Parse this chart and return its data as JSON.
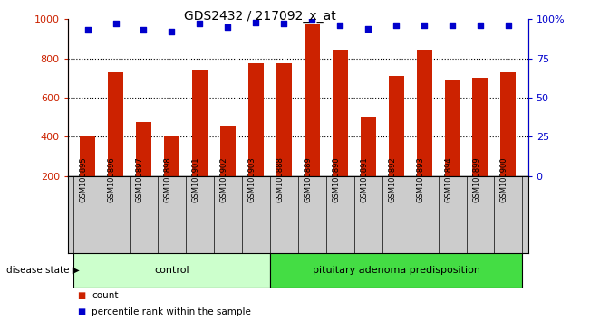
{
  "title": "GDS2432 / 217092_x_at",
  "samples": [
    "GSM100895",
    "GSM100896",
    "GSM100897",
    "GSM100898",
    "GSM100901",
    "GSM100902",
    "GSM100903",
    "GSM100888",
    "GSM100889",
    "GSM100890",
    "GSM100891",
    "GSM100892",
    "GSM100893",
    "GSM100894",
    "GSM100899",
    "GSM100900"
  ],
  "counts": [
    400,
    730,
    475,
    405,
    745,
    455,
    775,
    775,
    980,
    845,
    505,
    710,
    845,
    690,
    700,
    730
  ],
  "percentiles": [
    93,
    97,
    93,
    92,
    97,
    95,
    98,
    97,
    100,
    96,
    94,
    96,
    96,
    96,
    96,
    96
  ],
  "control_count": 7,
  "disease_state_label": "disease state",
  "control_label": "control",
  "disease_label": "pituitary adenoma predisposition",
  "legend_count": "count",
  "legend_pct": "percentile rank within the sample",
  "ylim_left": [
    200,
    1000
  ],
  "ylim_right": [
    0,
    100
  ],
  "yticks_left": [
    200,
    400,
    600,
    800,
    1000
  ],
  "yticks_right": [
    0,
    25,
    50,
    75,
    100
  ],
  "bar_color": "#cc2200",
  "dot_color": "#0000cc",
  "control_bg": "#ccffcc",
  "disease_bg": "#44dd44",
  "sample_box_bg": "#cccccc",
  "grid_color": "#000000",
  "bg_color": "#ffffff",
  "axis_label_color_left": "#cc2200",
  "axis_label_color_right": "#0000cc"
}
